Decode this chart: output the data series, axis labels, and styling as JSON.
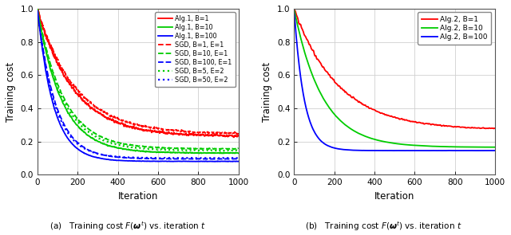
{
  "xlim": [
    0,
    1000
  ],
  "ylim": [
    0,
    1.0
  ],
  "xlabel": "Iteration",
  "ylabel": "Training cost",
  "legend_a": [
    {
      "label": "Alg.1, B=1",
      "color": "#FF0000",
      "ls": "solid",
      "lw": 1.4
    },
    {
      "label": "Alg.1, B=10",
      "color": "#00CC00",
      "ls": "solid",
      "lw": 1.4
    },
    {
      "label": "Alg.1, B=100",
      "color": "#0000FF",
      "ls": "solid",
      "lw": 1.4
    },
    {
      "label": "SGD, B=1, E=1",
      "color": "#FF0000",
      "ls": "dashed",
      "lw": 1.4
    },
    {
      "label": "SGD, B=10, E=1",
      "color": "#00CC00",
      "ls": "dashed",
      "lw": 1.4
    },
    {
      "label": "SGD, B=100, E=1",
      "color": "#0000FF",
      "ls": "dashed",
      "lw": 1.4
    },
    {
      "label": "SGD, B=5, E=2",
      "color": "#00CC00",
      "ls": "dotted",
      "lw": 1.6
    },
    {
      "label": "SGD, B=50, E=2",
      "color": "#0000FF",
      "ls": "dotted",
      "lw": 1.6
    }
  ],
  "legend_b": [
    {
      "label": "Alg.2, B=1",
      "color": "#FF0000",
      "ls": "solid",
      "lw": 1.4
    },
    {
      "label": "Alg.2, B=10",
      "color": "#00CC00",
      "ls": "solid",
      "lw": 1.4
    },
    {
      "label": "Alg.2, B=100",
      "color": "#0000FF",
      "ls": "solid",
      "lw": 1.4
    }
  ],
  "n_iter": 1000,
  "seed": 42,
  "grid_color": "#d0d0d0",
  "ax_facecolor": "#ffffff",
  "fig_facecolor": "#ffffff"
}
